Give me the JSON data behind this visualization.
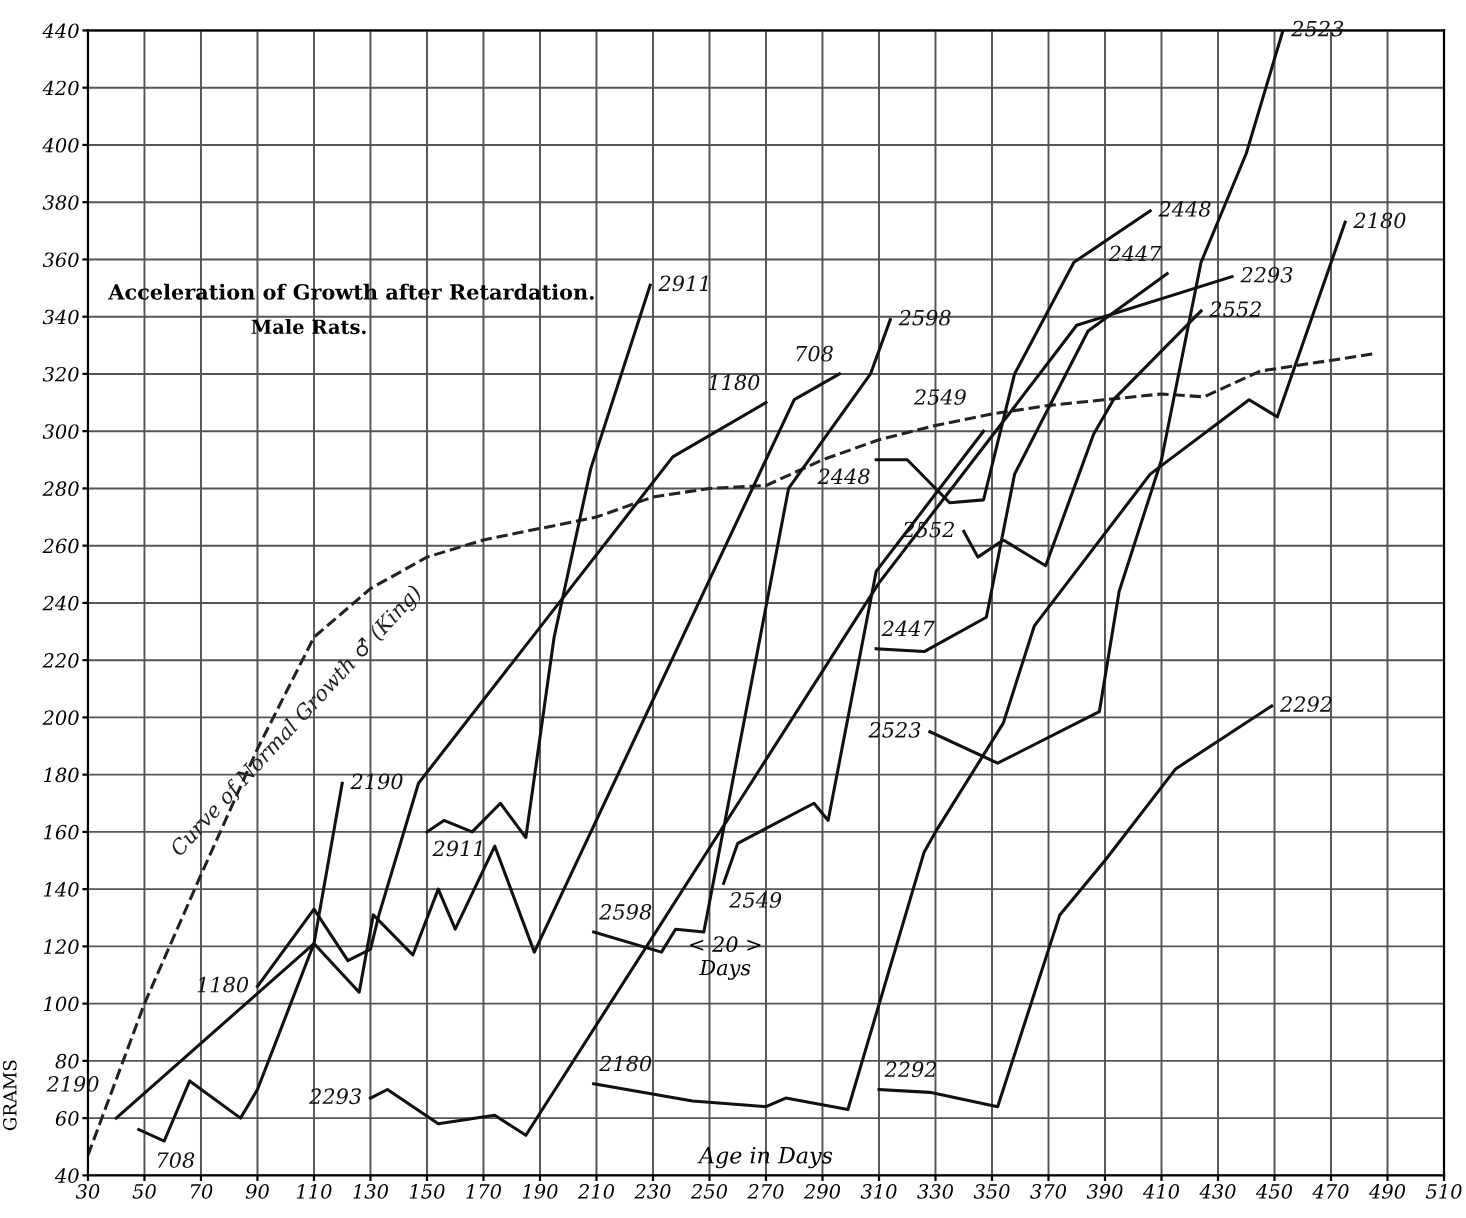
{
  "chart_data": {
    "type": "line",
    "title": "Acceleration of Growth after Retardation.",
    "subtitle": "Male Rats.",
    "xlabel": "Age in Days",
    "ylabel": "GRAMS",
    "annotations": [
      "< 20 >\nDays"
    ],
    "xlim": [
      30,
      510
    ],
    "xticks": [
      30,
      50,
      70,
      90,
      110,
      130,
      150,
      170,
      190,
      210,
      230,
      250,
      270,
      290,
      310,
      330,
      350,
      370,
      390,
      410,
      430,
      450,
      470,
      490,
      510
    ],
    "ylim": [
      40,
      440
    ],
    "yticks": [
      40,
      60,
      80,
      100,
      120,
      140,
      160,
      180,
      200,
      220,
      240,
      260,
      280,
      300,
      320,
      340,
      360,
      380,
      400,
      420,
      440
    ],
    "grid": true,
    "legend": false,
    "marker": "none",
    "line_style": "solid",
    "series": [
      {
        "name": "Curve of Normal Growth ♂ (King)",
        "color": "#222222",
        "line_style": "dashed",
        "x": [
          30,
          50,
          70,
          90,
          110,
          130,
          150,
          170,
          190,
          210,
          230,
          250,
          270,
          290,
          310,
          330,
          350,
          370,
          390,
          410,
          425,
          445,
          485
        ],
        "values": [
          47,
          100,
          145,
          189,
          228,
          245,
          256,
          262,
          266,
          270,
          277,
          280,
          281,
          290,
          297,
          302,
          306,
          309,
          311,
          313,
          312,
          321,
          327
        ]
      },
      {
        "name": "2190",
        "color": "#111111",
        "x": [
          40,
          110,
          120
        ],
        "values": [
          60,
          121,
          177
        ]
      },
      {
        "name": "708",
        "color": "#111111",
        "x": [
          48,
          57,
          66,
          84,
          90,
          110,
          126,
          131,
          145,
          154,
          160,
          174,
          188,
          280,
          296
        ],
        "values": [
          56,
          52,
          73,
          60,
          70,
          121,
          104,
          131,
          117,
          140,
          126,
          155,
          118,
          311,
          320
        ]
      },
      {
        "name": "1180",
        "color": "#111111",
        "x": [
          90,
          110,
          122,
          130,
          133,
          147,
          237,
          270
        ],
        "values": [
          106,
          133,
          115,
          119,
          131,
          177,
          291,
          310
        ]
      },
      {
        "name": "2911",
        "color": "#111111",
        "x": [
          150,
          156,
          166,
          176,
          185,
          195,
          208,
          229
        ],
        "values": [
          160,
          164,
          160,
          170,
          158,
          228,
          287,
          351
        ]
      },
      {
        "name": "2293",
        "color": "#111111",
        "x": [
          130,
          136,
          154,
          174,
          185,
          310,
          356,
          380,
          435
        ],
        "values": [
          67,
          70,
          58,
          61,
          54,
          247,
          306,
          337,
          354
        ]
      },
      {
        "name": "2598",
        "color": "#111111",
        "x": [
          209,
          233,
          238,
          248,
          278,
          307,
          314
        ],
        "values": [
          125,
          118,
          126,
          125,
          280,
          320,
          339
        ]
      },
      {
        "name": "2549",
        "color": "#111111",
        "x": [
          255,
          260,
          287,
          292,
          309,
          347
        ],
        "values": [
          142,
          156,
          170,
          164,
          251,
          300
        ]
      },
      {
        "name": "2180",
        "color": "#111111",
        "x": [
          209,
          244,
          270,
          277,
          299,
          326,
          330,
          354,
          365,
          406,
          441,
          451,
          475
        ],
        "values": [
          72,
          66,
          64,
          67,
          63,
          153,
          160,
          198,
          232,
          285,
          311,
          305,
          373
        ]
      },
      {
        "name": "2448",
        "color": "#111111",
        "x": [
          309,
          320,
          335,
          347,
          358,
          379,
          406
        ],
        "values": [
          290,
          290,
          275,
          276,
          320,
          359,
          377
        ]
      },
      {
        "name": "2447",
        "color": "#111111",
        "x": [
          309,
          326,
          348,
          358,
          384,
          412
        ],
        "values": [
          224,
          223,
          235,
          285,
          335,
          355
        ]
      },
      {
        "name": "2292",
        "color": "#111111",
        "x": [
          310,
          328,
          352,
          374,
          390,
          415,
          449
        ],
        "values": [
          70,
          69,
          64,
          131,
          150,
          182,
          204
        ]
      },
      {
        "name": "2523",
        "color": "#111111",
        "x": [
          328,
          352,
          388,
          395,
          410,
          424,
          440,
          453
        ],
        "values": [
          195,
          184,
          202,
          244,
          290,
          359,
          397,
          440
        ]
      },
      {
        "name": "2552",
        "color": "#111111",
        "x": [
          340,
          345,
          354,
          369,
          386,
          393,
          424
        ],
        "values": [
          265,
          256,
          262,
          253,
          299,
          311,
          342
        ]
      }
    ]
  }
}
